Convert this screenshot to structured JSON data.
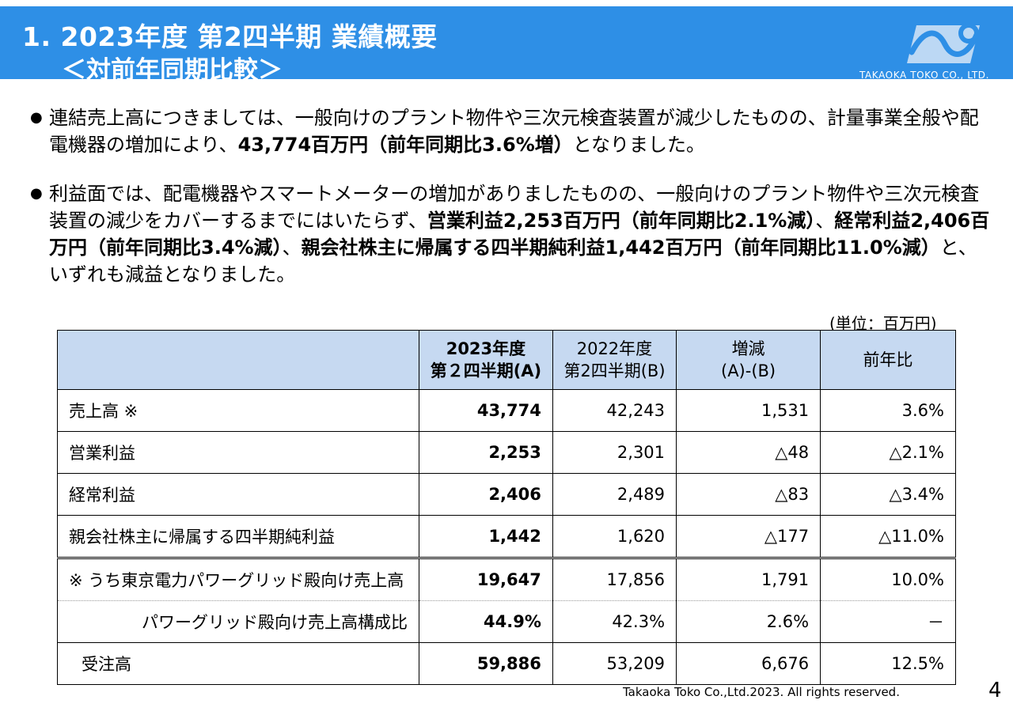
{
  "header": {
    "title_line1": "1. 2023年度 第2四半期 業績概要",
    "title_line2": "＜対前年同期比較＞",
    "logo_text": "TAKAOKA TOKO CO., LTD."
  },
  "bullets": [
    {
      "t1": "連結売上高につきましては、一般向けのプラント物件や三次元検査装置が減少したものの、計量事業全般や配電機器の増加により、",
      "b1": "43,774百万円（前年同期比3.6%増）",
      "t2": "となりました。"
    },
    {
      "t1": "利益面では、配電機器やスマートメーターの増加がありましたものの、一般向けのプラント物件や三次元検査装置の減少をカバーするまでにはいたらず、",
      "b1": "営業利益2,253百万円（前年同期比2.1%減）",
      "t2": "、",
      "b2": "経常利益2,406百万円（前年同期比3.4%減）",
      "t3": "、",
      "b3": "親会社株主に帰属する四半期純利益1,442百万円（前年同期比11.0%減）",
      "t4": "と、いずれも減益となりました。"
    }
  ],
  "unit_label": "(単位：百万円)",
  "table": {
    "headers": {
      "col1_l1": "2023年度",
      "col1_l2": "第２四半期(A)",
      "col2_l1": "2022年度",
      "col2_l2": "第2四半期(B)",
      "col3_l1": "増減",
      "col3_l2": "(A)-(B)",
      "col4": "前年比"
    },
    "rows": [
      {
        "label": "売上高 ※",
        "a": "43,774",
        "b": "42,243",
        "diff": "1,531",
        "ratio": "3.6%"
      },
      {
        "label": "営業利益",
        "a": "2,253",
        "b": "2,301",
        "diff": "△48",
        "ratio": "△2.1%"
      },
      {
        "label": "経常利益",
        "a": "2,406",
        "b": "2,489",
        "diff": "△83",
        "ratio": "△3.4%"
      },
      {
        "label": "親会社株主に帰属する四半期純利益",
        "a": "1,442",
        "b": "1,620",
        "diff": "△177",
        "ratio": "△11.0%"
      },
      {
        "label": "※ うち東京電力パワーグリッド殿向け売上高",
        "a": "19,647",
        "b": "17,856",
        "diff": "1,791",
        "ratio": "10.0%"
      },
      {
        "label": "パワーグリッド殿向け売上高構成比",
        "a": "44.9%",
        "b": "42.3%",
        "diff": "2.6%",
        "ratio": "－"
      },
      {
        "label": "受注高",
        "a": "59,886",
        "b": "53,209",
        "diff": "6,676",
        "ratio": "12.5%"
      }
    ]
  },
  "footer": {
    "copyright": "Takaoka Toko Co.,Ltd.2023. All rights reserved.",
    "page_number": "4"
  },
  "colors": {
    "header_bg": "#2e8fe6",
    "table_header_bg": "#c6d9f1"
  }
}
